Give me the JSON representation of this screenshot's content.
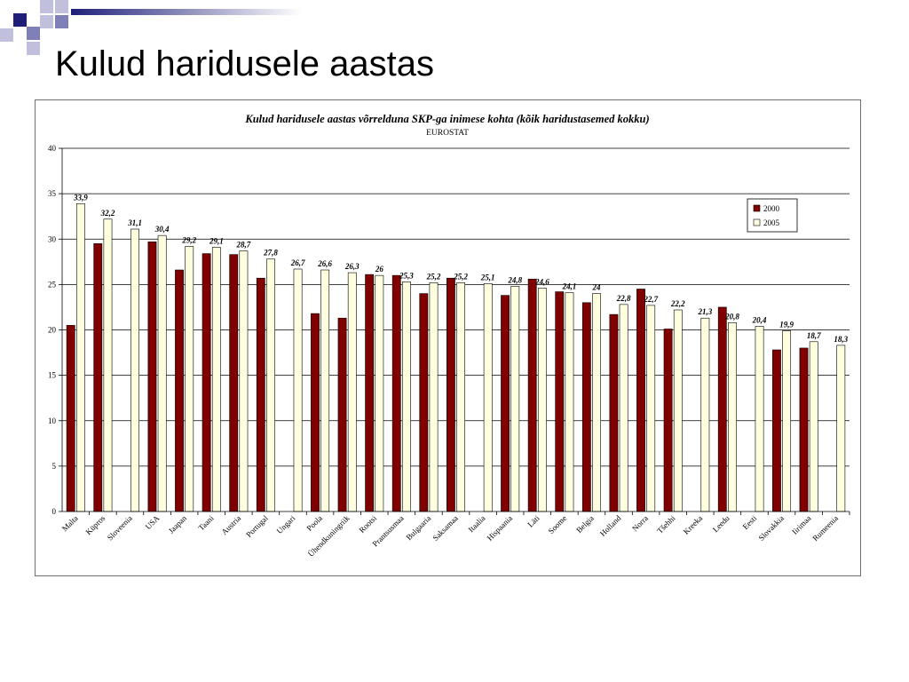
{
  "slide": {
    "title": "Kulud haridusele aastas"
  },
  "colors": {
    "deco_dark": "#1f1f7a",
    "deco_mid": "#8080b8",
    "deco_light": "#c0c0dc",
    "series_2000": "#800000",
    "series_2005": "#ffffe0",
    "grid": "#000000"
  },
  "chart_data": {
    "type": "bar",
    "title": "Kulud haridusele aastas võrrelduna SKP-ga inimese kohta (kõik haridustasemed kokku)",
    "subtitle": "EUROSTAT",
    "xlabel": "",
    "ylabel": "",
    "ylim": [
      0,
      40
    ],
    "yticks": [
      0,
      5,
      10,
      15,
      20,
      25,
      30,
      35,
      40
    ],
    "grid": true,
    "legend_position": "top-right",
    "categories": [
      "Malta",
      "Küpros",
      "Sloveenia",
      "USA",
      "Jaapan",
      "Taani",
      "Austria",
      "Portugal",
      "Ungari",
      "Poola",
      "Ühendkuningriik",
      "Rootsi",
      "Prantsusmaa",
      "Bulgaaria",
      "Saksamaa",
      "Itaalia",
      "Hispaania",
      "Läti",
      "Soome",
      "Belgia",
      "Holland",
      "Norra",
      "Tšehhi",
      "Kreeka",
      "Leedu",
      "Eesti",
      "Slovakkia",
      "Iirimaa",
      "Rumeenia"
    ],
    "series": [
      {
        "name": "2000",
        "values": [
          20.5,
          29.5,
          null,
          29.7,
          26.6,
          28.4,
          28.3,
          25.7,
          null,
          21.8,
          21.3,
          26.1,
          26.0,
          24.0,
          25.7,
          null,
          23.8,
          25.6,
          24.2,
          23.0,
          21.7,
          24.5,
          20.1,
          null,
          22.5,
          null,
          17.8,
          18.0,
          null
        ]
      },
      {
        "name": "2005",
        "values": [
          33.9,
          32.2,
          31.1,
          30.4,
          29.2,
          29.1,
          28.7,
          27.8,
          26.7,
          26.6,
          26.3,
          26.0,
          25.3,
          25.2,
          25.2,
          25.1,
          24.8,
          24.6,
          24.1,
          24.0,
          22.8,
          22.7,
          22.2,
          21.3,
          20.8,
          20.4,
          19.9,
          18.7,
          18.3
        ]
      }
    ],
    "data_labels_2005": [
      "33,9",
      "32,2",
      "31,1",
      "30,4",
      "29,2",
      "29,1",
      "28,7",
      "27,8",
      "26,7",
      "26,6",
      "26,3",
      "26",
      "25,3",
      "25,2",
      "25,2",
      "25,1",
      "24,8",
      "24,6",
      "24,1",
      "24",
      "22,8",
      "22,7",
      "22,2",
      "21,3",
      "20,8",
      "20,4",
      "19,9",
      "18,7",
      "18,3"
    ]
  }
}
